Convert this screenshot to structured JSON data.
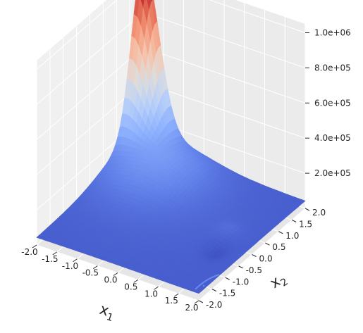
{
  "chart_data": {
    "type": "surface",
    "title": "",
    "xlabel": "x",
    "xlabel_sub": "1",
    "ylabel": "x",
    "ylabel_sub": "2",
    "zlabel": "",
    "colormap": "coolwarm",
    "xlim": [
      -2.0,
      2.0
    ],
    "ylim": [
      -2.0,
      2.0
    ],
    "zlim": [
      0,
      1050000
    ],
    "xticks": [
      "-2.0",
      "-1.5",
      "-1.0",
      "-0.5",
      "0.0",
      "0.5",
      "1.0",
      "1.5",
      "2.0"
    ],
    "yticks": [
      "-2.0",
      "-1.5",
      "-1.0",
      "-0.5",
      "0.0",
      "0.5",
      "1.0",
      "1.5",
      "2.0"
    ],
    "zticks": [
      "2.0e+05",
      "4.0e+05",
      "6.0e+05",
      "8.0e+05",
      "1.0e+06"
    ],
    "xtick_values": [
      -2.0,
      -1.5,
      -1.0,
      -0.5,
      0.0,
      0.5,
      1.0,
      1.5,
      2.0
    ],
    "ytick_values": [
      -2.0,
      -1.5,
      -1.0,
      -0.5,
      0.0,
      0.5,
      1.0,
      1.5,
      2.0
    ],
    "ztick_values": [
      200000,
      400000,
      600000,
      800000,
      1000000
    ],
    "peak": {
      "x1": -2.0,
      "x2": 2.0,
      "z": 1000000
    },
    "grid": true
  },
  "colors": {
    "pane": "#f0f0f0",
    "grid": "#ffffff",
    "tick_text": "#262626",
    "surface_low": "#3b4cc0",
    "surface_high": "#b40426"
  }
}
